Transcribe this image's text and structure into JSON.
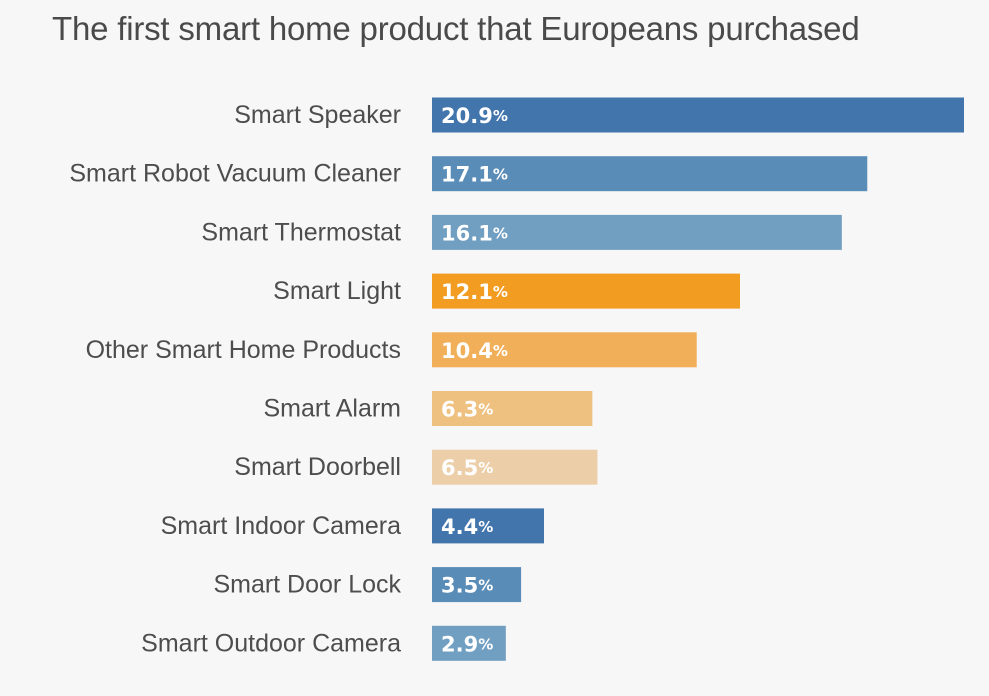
{
  "chart_data": {
    "type": "bar",
    "orientation": "horizontal",
    "title": "The first smart home product that Europeans purchased",
    "xlabel": "",
    "ylabel": "",
    "unit": "%",
    "categories": [
      "Smart Speaker",
      "Smart Robot Vacuum Cleaner",
      "Smart Thermostat",
      "Smart Light",
      "Other Smart Home Products",
      "Smart Alarm",
      "Smart Doorbell",
      "Smart Indoor Camera",
      "Smart Door Lock",
      "Smart Outdoor Camera"
    ],
    "values": [
      20.9,
      17.1,
      16.1,
      12.1,
      10.4,
      6.3,
      6.5,
      4.4,
      3.5,
      2.9
    ],
    "value_labels": [
      "20.9",
      "17.1",
      "16.1",
      "12.1",
      "10.4",
      "6.3",
      "6.5",
      "4.4",
      "3.5",
      "2.9"
    ],
    "colors": [
      "#4175ab",
      "#5a8cb8",
      "#709fc2",
      "#f29c22",
      "#f1af59",
      "#efc180",
      "#eccfa9",
      "#4175ab",
      "#5a8cb8",
      "#709fc2"
    ],
    "xlim": [
      0,
      20.9
    ],
    "grid": false,
    "legend": "none"
  }
}
